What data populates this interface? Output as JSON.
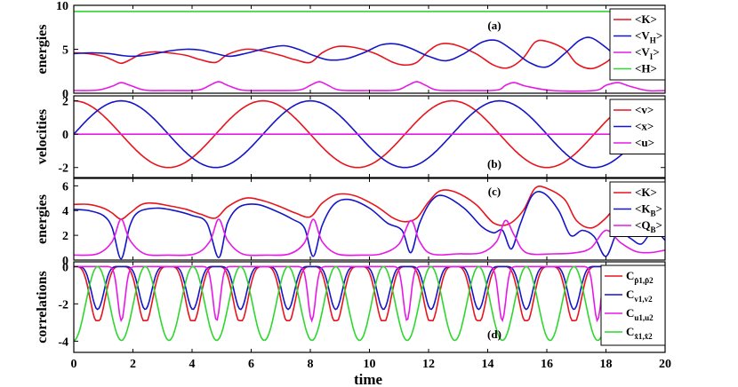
{
  "colors": {
    "red": "#e8141d",
    "blue": "#1515c8",
    "magenta": "#e619e6",
    "green": "#2fd62f"
  },
  "chart_data": [
    {
      "type": "line",
      "panel_tag": "(a)",
      "ylabel": "energies",
      "xlim": [
        0,
        20
      ],
      "ylim": [
        0,
        10
      ],
      "yticks": [
        0,
        5,
        10
      ],
      "yticklabels": [
        "0",
        "5",
        "10"
      ],
      "grid": false,
      "legend_position": "top-right",
      "series": [
        {
          "key": "K",
          "label": "<K>",
          "color": "red",
          "x": [
            0,
            0.5,
            1,
            1.3,
            1.6,
            1.9,
            2.3,
            2.7,
            3.2,
            3.8,
            4.3,
            4.8,
            5.2,
            5.8,
            6.4,
            7,
            7.5,
            8,
            8.4,
            8.9,
            9.5,
            10.2,
            10.8,
            11.2,
            11.6,
            12,
            12.4,
            12.9,
            13.6,
            14.2,
            14.7,
            15.2,
            15.6,
            16,
            16.6,
            17,
            17.5,
            18,
            18.5,
            19,
            19.4,
            19.8,
            20
          ],
          "values": [
            4.6,
            4.5,
            4.2,
            3.8,
            3.4,
            3.8,
            4.5,
            4.7,
            4.6,
            4.3,
            3.8,
            3.5,
            4.4,
            5.0,
            4.8,
            4.3,
            3.8,
            3.5,
            4.6,
            5.3,
            5.2,
            4.5,
            3.5,
            3.2,
            3.5,
            4.8,
            5.6,
            5.5,
            4.5,
            3.2,
            2.9,
            4.0,
            5.8,
            5.9,
            5.0,
            3.4,
            2.8,
            3.5,
            4.8,
            4.8,
            4.0,
            2.8,
            2.4
          ]
        },
        {
          "key": "VH",
          "label": "<V",
          "sub": "H",
          "color": "blue",
          "x": [
            0,
            0.6,
            1.2,
            1.6,
            2,
            2.6,
            3.2,
            3.8,
            4.3,
            4.8,
            5.3,
            5.9,
            6.5,
            7.1,
            7.6,
            8.1,
            8.6,
            9.2,
            9.8,
            10.4,
            10.9,
            11.4,
            12,
            12.6,
            13.2,
            13.8,
            14.3,
            14.8,
            15.4,
            16,
            16.6,
            17.1,
            17.5,
            18,
            18.6,
            19.2,
            19.6,
            20
          ],
          "values": [
            4.5,
            4.6,
            4.5,
            4.3,
            4.2,
            4.4,
            4.8,
            5.0,
            4.9,
            4.5,
            4.2,
            4.6,
            5.1,
            5.4,
            5.0,
            4.3,
            3.8,
            3.9,
            4.6,
            5.5,
            5.6,
            5.1,
            4.2,
            3.7,
            4.5,
            5.8,
            6.0,
            5.0,
            3.5,
            3.0,
            4.5,
            6.0,
            6.3,
            5.2,
            3.5,
            2.9,
            4.5,
            6.5
          ]
        },
        {
          "key": "VI",
          "label": "<V",
          "sub": "I",
          "color": "magenta",
          "x": [
            0,
            0.8,
            1.3,
            1.6,
            1.9,
            2.4,
            3.2,
            4.2,
            4.6,
            4.9,
            5.2,
            5.7,
            6.5,
            7.6,
            8,
            8.3,
            8.6,
            9,
            10,
            10.9,
            11.3,
            11.6,
            11.9,
            12.3,
            13.2,
            14.3,
            14.6,
            14.9,
            15.3,
            16.2,
            17.6,
            18,
            18.4,
            18.8,
            19.4,
            20
          ],
          "values": [
            0.3,
            0.35,
            0.8,
            1.2,
            0.9,
            0.35,
            0.3,
            0.35,
            0.9,
            1.3,
            0.9,
            0.35,
            0.3,
            0.35,
            0.9,
            1.3,
            0.9,
            0.35,
            0.3,
            0.35,
            0.9,
            1.3,
            0.9,
            0.35,
            0.3,
            0.35,
            0.9,
            1.2,
            0.8,
            0.3,
            0.3,
            0.9,
            1.2,
            0.8,
            0.3,
            0.3
          ]
        },
        {
          "key": "H",
          "label": "<H>",
          "color": "green",
          "x": [
            0,
            20
          ],
          "values": [
            9.3,
            9.3
          ]
        }
      ]
    },
    {
      "type": "line",
      "panel_tag": "(b)",
      "ylabel": "velocities",
      "xlim": [
        0,
        20
      ],
      "ylim": [
        -2.6,
        2.3
      ],
      "yticks": [
        -2,
        0,
        2
      ],
      "yticklabels": [
        "-2",
        "0",
        "2"
      ],
      "grid": false,
      "legend_position": "top-right",
      "series": [
        {
          "key": "v",
          "label": "<v>",
          "color": "red",
          "formula": "2cos(pi t / 3.2)"
        },
        {
          "key": "x",
          "label": "<x>",
          "color": "blue",
          "formula": "2sin(pi t / 3.2)"
        },
        {
          "key": "u",
          "label": "<u>",
          "color": "magenta",
          "x": [
            0,
            20
          ],
          "values": [
            0,
            0
          ]
        }
      ]
    },
    {
      "type": "line",
      "panel_tag": "(c)",
      "ylabel": "energies",
      "xlim": [
        0,
        20
      ],
      "ylim": [
        0,
        6.6
      ],
      "yticks": [
        0,
        2,
        4,
        6
      ],
      "yticklabels": [
        "0",
        "2",
        "4",
        "6"
      ],
      "grid": false,
      "legend_position": "top-right",
      "series": [
        {
          "key": "K",
          "label": "<K>",
          "color": "red",
          "x": [
            0,
            0.5,
            1,
            1.3,
            1.6,
            1.9,
            2.3,
            2.7,
            3.2,
            3.8,
            4.3,
            4.8,
            5.2,
            5.8,
            6.4,
            7,
            7.5,
            8,
            8.4,
            8.9,
            9.5,
            10.2,
            10.8,
            11.2,
            11.6,
            12,
            12.4,
            12.9,
            13.6,
            14.2,
            14.7,
            15.2,
            15.6,
            16,
            16.6,
            17,
            17.5,
            18,
            18.5,
            19,
            19.4,
            19.8,
            20
          ],
          "values": [
            4.5,
            4.5,
            4.2,
            3.8,
            3.3,
            3.8,
            4.5,
            4.6,
            4.4,
            4.1,
            3.7,
            3.4,
            4.3,
            5.0,
            4.8,
            4.3,
            3.8,
            3.5,
            4.6,
            5.3,
            5.2,
            4.4,
            3.4,
            3.1,
            3.4,
            4.7,
            5.6,
            5.5,
            4.5,
            3.0,
            2.9,
            4.0,
            5.8,
            5.8,
            4.9,
            3.2,
            2.6,
            3.4,
            4.8,
            4.7,
            3.8,
            2.6,
            2.3
          ]
        },
        {
          "key": "KB",
          "label": "<K",
          "sub": "B",
          "color": "blue",
          "x": [
            0,
            0.5,
            1,
            1.3,
            1.6,
            1.9,
            2.2,
            2.8,
            3.4,
            4,
            4.5,
            4.9,
            5.2,
            5.6,
            6.2,
            6.8,
            7.4,
            7.8,
            8.1,
            8.4,
            8.8,
            9.3,
            10,
            10.6,
            11.1,
            11.4,
            11.7,
            12.1,
            12.5,
            13.2,
            13.8,
            14.2,
            14.5,
            14.8,
            15.1,
            15.5,
            15.9,
            16.4,
            16.8,
            17.2,
            17.6,
            18,
            18.4,
            18.8,
            19.2,
            19.6,
            20
          ],
          "values": [
            4.1,
            4.0,
            3.6,
            2.6,
            0.1,
            2.8,
            3.9,
            4.2,
            4.0,
            3.6,
            3.0,
            0.2,
            3.0,
            4.3,
            4.5,
            4.0,
            3.3,
            2.6,
            0.3,
            2.8,
            4.5,
            4.9,
            4.2,
            3.0,
            2.4,
            0.6,
            3.0,
            4.8,
            5.2,
            4.2,
            2.7,
            2.2,
            2.4,
            0.9,
            2.9,
            5.2,
            5.4,
            4.0,
            2.0,
            2.4,
            1.9,
            0.3,
            2.3,
            1.8,
            1.3,
            2.4,
            1.6
          ]
        },
        {
          "key": "QB",
          "label": "<Q",
          "sub": "B",
          "color": "magenta",
          "x": [
            0,
            0.8,
            1.3,
            1.6,
            1.9,
            2.4,
            3.2,
            4.1,
            4.6,
            4.9,
            5.2,
            5.7,
            6.5,
            7.3,
            7.8,
            8.1,
            8.4,
            8.9,
            9.7,
            10.4,
            11,
            11.4,
            11.7,
            12.1,
            13,
            13.8,
            14.3,
            14.6,
            14.9,
            15.3,
            16.2,
            17,
            17.5,
            18,
            18.5,
            19,
            19.5,
            20
          ],
          "values": [
            0.4,
            0.5,
            1.5,
            3.3,
            1.6,
            0.5,
            0.4,
            0.5,
            1.5,
            3.3,
            1.6,
            0.5,
            0.4,
            0.5,
            1.4,
            3.3,
            1.5,
            0.5,
            0.4,
            0.5,
            1.3,
            3.2,
            1.5,
            0.5,
            0.5,
            0.6,
            1.5,
            3.2,
            2.0,
            0.6,
            0.5,
            0.6,
            1.0,
            2.4,
            1.4,
            0.7,
            0.6,
            0.8
          ]
        }
      ]
    },
    {
      "type": "line",
      "panel_tag": "(d)",
      "ylabel": "correlations",
      "xlabel": "time",
      "xlim": [
        0,
        20
      ],
      "ylim": [
        -4.6,
        0.25
      ],
      "yticks": [
        -4,
        -2,
        0
      ],
      "yticklabels": [
        "-4",
        "-2",
        "0"
      ],
      "xticks": [
        0,
        2,
        4,
        6,
        8,
        10,
        12,
        14,
        16,
        18,
        20
      ],
      "xticklabels": [
        "0",
        "2",
        "4",
        "6",
        "8",
        "10",
        "12",
        "14",
        "16",
        "18",
        "20"
      ],
      "grid": false,
      "legend_position": "top-right",
      "series": [
        {
          "key": "Cp",
          "label": "C",
          "sub": "p̂1,p̂2",
          "color": "red",
          "formula": "-2.9 plateau between crossings"
        },
        {
          "key": "Cv",
          "label": "C",
          "sub": "v1,v2",
          "color": "blue",
          "formula": "double-dip near -2.3"
        },
        {
          "key": "Cu",
          "label": "C",
          "sub": "u1,u2",
          "color": "magenta",
          "formula": "spikes to -2.9"
        },
        {
          "key": "Cx",
          "label": "C",
          "sub": "x̂1,x̂2",
          "color": "green",
          "formula": "-4 cos^2 oscillation"
        }
      ]
    }
  ]
}
